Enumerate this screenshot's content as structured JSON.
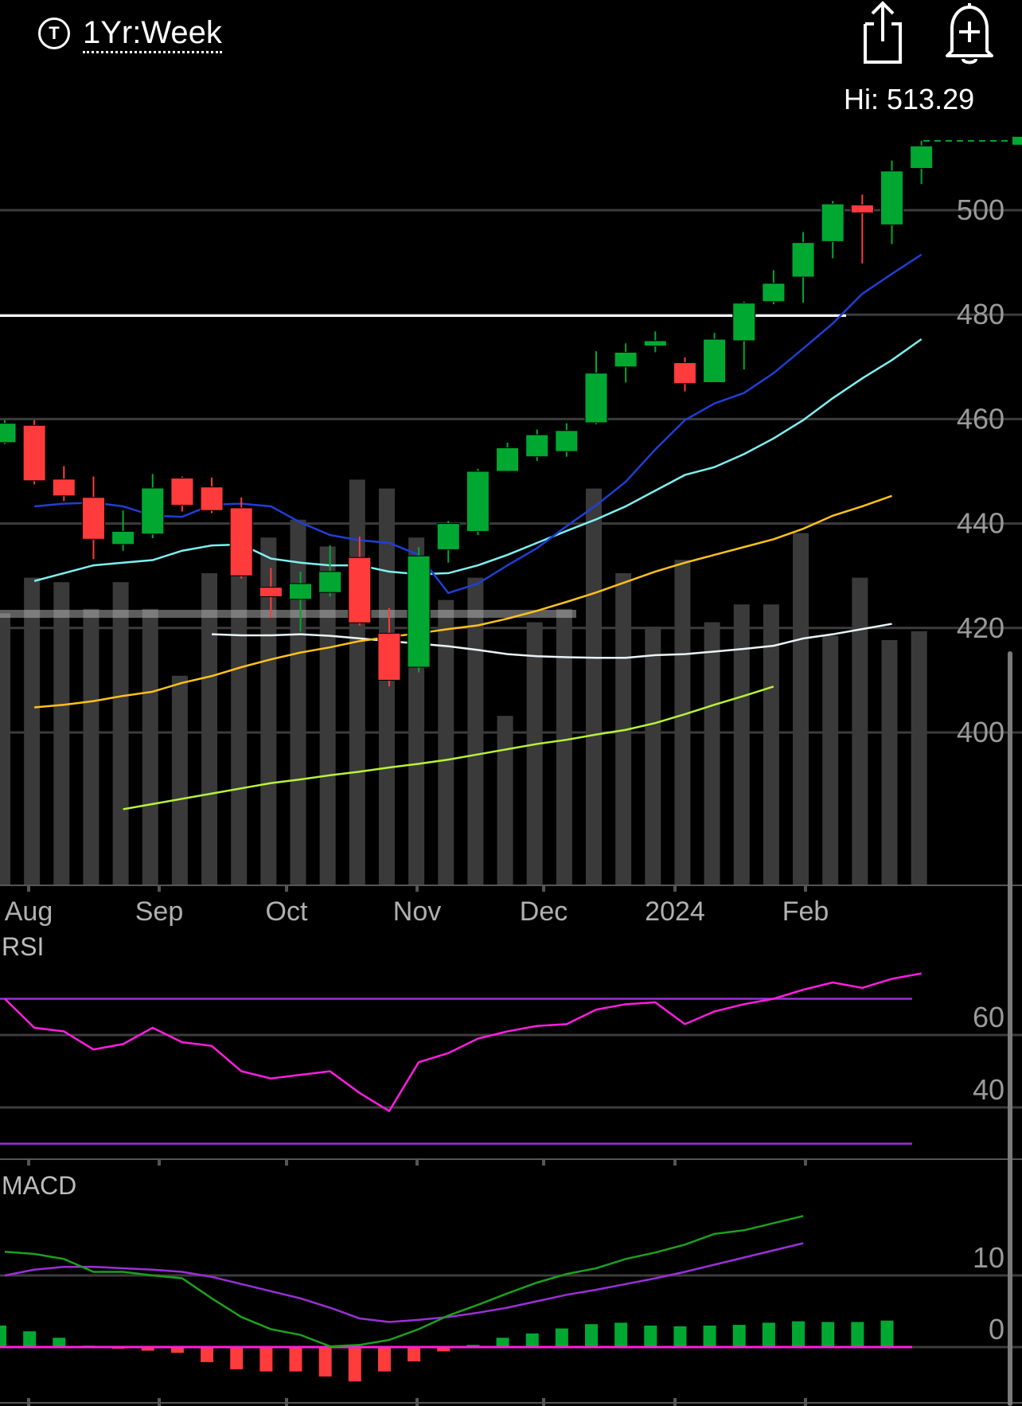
{
  "header": {
    "ticker_icon_letter": "T",
    "range_label": "1Yr:Week",
    "share_icon": "share-icon",
    "alert_icon": "bell-plus-icon"
  },
  "hi_label": "Hi: 513.29",
  "colors": {
    "up": "#00a832",
    "down": "#ff3b3b",
    "ema_blue": "#1f3fd6",
    "ema_cyan": "#7ff0f0",
    "sma_yellow": "#ffc21a",
    "sma_white": "#e8f4f8",
    "sma_lime": "#b8f23a",
    "rsi_line": "#ff1ee0",
    "rsi_bounds": "#9a30d8",
    "macd_line": "#1ea01e",
    "macd_signal": "#9a30d8",
    "macd_zero": "#ff1ee0"
  },
  "chart_data": {
    "type": "candlestick",
    "price_axis": {
      "ticks": [
        "500",
        "480",
        "460",
        "440",
        "420",
        "400"
      ],
      "tick_values": [
        500,
        480,
        460,
        440,
        420,
        400
      ]
    },
    "x_labels": [
      "Aug",
      "Sep",
      "Oct",
      "Nov",
      "Dec",
      "2024",
      "Feb"
    ],
    "hi": 513.29,
    "resistance_level": 479.8,
    "candles": [
      {
        "o": 455.5,
        "c": 459.2,
        "h": 459.8,
        "l": 455.2
      },
      {
        "o": 458.8,
        "c": 448.2,
        "h": 459.8,
        "l": 447.5
      },
      {
        "o": 448.5,
        "c": 445.3,
        "h": 451.0,
        "l": 444.3
      },
      {
        "o": 445.0,
        "c": 437.0,
        "h": 449.0,
        "l": 433.2
      },
      {
        "o": 436.0,
        "c": 438.5,
        "h": 442.5,
        "l": 434.8
      },
      {
        "o": 438.0,
        "c": 446.8,
        "h": 449.5,
        "l": 437.2
      },
      {
        "o": 448.7,
        "c": 443.5,
        "h": 449.0,
        "l": 442.3
      },
      {
        "o": 447.0,
        "c": 442.5,
        "h": 448.8,
        "l": 442.0
      },
      {
        "o": 443.0,
        "c": 430.0,
        "h": 445.0,
        "l": 429.5
      },
      {
        "o": 427.8,
        "c": 426.0,
        "h": 431.5,
        "l": 422.0
      },
      {
        "o": 425.5,
        "c": 428.5,
        "h": 430.8,
        "l": 419.3
      },
      {
        "o": 426.8,
        "c": 430.8,
        "h": 435.8,
        "l": 426.0
      },
      {
        "o": 433.5,
        "c": 421.0,
        "h": 437.5,
        "l": 420.5
      },
      {
        "o": 419.0,
        "c": 410.0,
        "h": 423.8,
        "l": 408.8
      },
      {
        "o": 412.5,
        "c": 433.8,
        "h": 435.5,
        "l": 411.5
      },
      {
        "o": 435.0,
        "c": 440.0,
        "h": 440.5,
        "l": 432.5
      },
      {
        "o": 438.5,
        "c": 450.0,
        "h": 450.5,
        "l": 437.8
      },
      {
        "o": 450.0,
        "c": 454.5,
        "h": 455.5,
        "l": 450.0
      },
      {
        "o": 452.8,
        "c": 457.0,
        "h": 458.0,
        "l": 452.0
      },
      {
        "o": 453.8,
        "c": 457.8,
        "h": 459.2,
        "l": 452.8
      },
      {
        "o": 459.3,
        "c": 468.8,
        "h": 473.0,
        "l": 459.0
      },
      {
        "o": 470.0,
        "c": 472.8,
        "h": 474.5,
        "l": 467.0
      },
      {
        "o": 474.0,
        "c": 475.0,
        "h": 476.8,
        "l": 472.8
      },
      {
        "o": 470.8,
        "c": 466.8,
        "h": 471.8,
        "l": 465.3
      },
      {
        "o": 467.0,
        "c": 475.3,
        "h": 476.5,
        "l": 467.0
      },
      {
        "o": 475.0,
        "c": 482.2,
        "h": 482.5,
        "l": 469.5
      },
      {
        "o": 482.5,
        "c": 486.0,
        "h": 488.5,
        "l": 482.0
      },
      {
        "o": 487.2,
        "c": 493.8,
        "h": 495.8,
        "l": 482.3
      },
      {
        "o": 494.0,
        "c": 501.2,
        "h": 501.8,
        "l": 490.8
      },
      {
        "o": 501.0,
        "c": 499.5,
        "h": 503.0,
        "l": 489.8
      },
      {
        "o": 497.2,
        "c": 507.5,
        "h": 509.5,
        "l": 493.5
      },
      {
        "o": 508.0,
        "c": 512.3,
        "h": 513.29,
        "l": 505.0
      }
    ],
    "volume_rel": [
      0.61,
      0.69,
      0.68,
      0.62,
      0.68,
      0.62,
      0.47,
      0.7,
      0.82,
      0.78,
      0.82,
      0.76,
      0.91,
      0.89,
      0.78,
      0.64,
      0.69,
      0.38,
      0.59,
      0.62,
      0.89,
      0.7,
      0.58,
      0.73,
      0.59,
      0.63,
      0.63,
      0.79,
      0.56,
      0.69,
      0.55,
      0.57
    ],
    "ema_blue": [
      443.3,
      443.8,
      444.0,
      443.3,
      441.5,
      441.3,
      443.6,
      443.8,
      443.3,
      440.2,
      437.8,
      436.8,
      436.3,
      434.0,
      426.7,
      428.5,
      432.0,
      435.3,
      439.5,
      443.5,
      448.0,
      454.2,
      459.8,
      463.0,
      465.0,
      468.8,
      473.5,
      478.3,
      484.0,
      487.8,
      491.5
    ],
    "ema_cyan": [
      429.0,
      430.5,
      432.0,
      432.5,
      433.0,
      434.8,
      435.8,
      436.0,
      433.3,
      432.5,
      432.0,
      432.0,
      430.8,
      430.3,
      430.5,
      432.0,
      434.0,
      436.3,
      438.6,
      440.8,
      443.3,
      446.3,
      449.3,
      450.8,
      453.3,
      456.3,
      459.8,
      464.0,
      467.8,
      471.3,
      475.3
    ],
    "sma_yellow": [
      404.8,
      405.3,
      406.0,
      407.0,
      407.8,
      409.5,
      410.8,
      412.5,
      414.0,
      415.3,
      416.3,
      417.5,
      418.3,
      419.0,
      419.8,
      420.5,
      421.8,
      423.3,
      425.0,
      426.8,
      428.8,
      430.8,
      432.5,
      434.0,
      435.5,
      437.0,
      439.0,
      441.5,
      443.3,
      445.3
    ],
    "sma_white": [
      418.8,
      418.6,
      418.6,
      418.8,
      418.5,
      418.0,
      417.5,
      417.0,
      416.5,
      415.8,
      415.0,
      414.6,
      414.4,
      414.3,
      414.3,
      414.8,
      415.0,
      415.5,
      416.0,
      416.6,
      418.0,
      418.8,
      419.8,
      420.8
    ],
    "sma_lime": [
      385.3,
      386.3,
      387.3,
      388.3,
      389.3,
      390.3,
      391.0,
      391.8,
      392.5,
      393.3,
      394.0,
      394.8,
      395.8,
      396.8,
      397.8,
      398.6,
      399.6,
      400.5,
      401.8,
      403.5,
      405.3,
      407.0,
      408.8
    ],
    "rsi": {
      "label": "RSI",
      "ticks": [
        "60",
        "40"
      ],
      "tick_values": [
        60,
        40
      ],
      "upper": 70,
      "lower": 30,
      "values": [
        70,
        62,
        61,
        56,
        57.5,
        62,
        58,
        57,
        50,
        48,
        49,
        50,
        44,
        39,
        52.5,
        55,
        59,
        61,
        62.5,
        63,
        67,
        68.5,
        69,
        63,
        66.5,
        68.5,
        70,
        72.5,
        74.5,
        73,
        75.5,
        77
      ]
    },
    "macd": {
      "label": "MACD",
      "ticks": [
        "10",
        "0"
      ],
      "tick_values": [
        10,
        0
      ],
      "macd": [
        13.3,
        13.0,
        12.3,
        10.5,
        10.5,
        10.0,
        9.6,
        6.8,
        4.2,
        2.5,
        1.7,
        0.1,
        0.3,
        1.0,
        2.5,
        4.4,
        5.9,
        7.5,
        9.0,
        10.2,
        11.0,
        12.3,
        13.2,
        14.3,
        15.8,
        16.3,
        17.3,
        18.3
      ],
      "signal": [
        10.0,
        10.8,
        11.2,
        11.2,
        11.0,
        10.8,
        10.5,
        9.8,
        8.8,
        7.8,
        6.8,
        5.5,
        4.0,
        3.5,
        3.8,
        4.2,
        4.8,
        5.5,
        6.4,
        7.3,
        8.0,
        8.8,
        9.6,
        10.5,
        11.5,
        12.5,
        13.5,
        14.5
      ],
      "histogram": [
        3.0,
        2.2,
        1.3,
        0.2,
        -0.1,
        -0.5,
        -0.8,
        -2.1,
        -3.1,
        -3.4,
        -3.4,
        -4.1,
        -4.8,
        -3.4,
        -2.0,
        -0.6,
        0.3,
        1.3,
        1.9,
        2.6,
        3.2,
        3.4,
        3.0,
        2.9,
        3.0,
        3.1,
        3.4,
        3.6,
        3.5,
        3.5,
        3.7
      ]
    }
  }
}
